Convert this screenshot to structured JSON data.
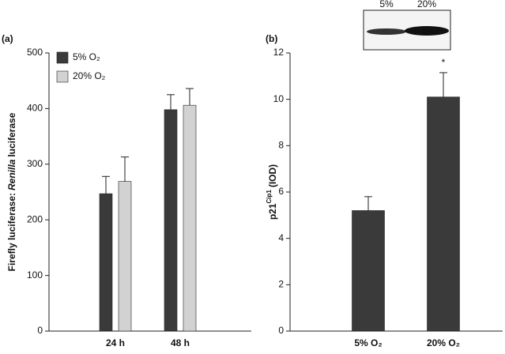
{
  "chart_data": [
    {
      "type": "bar",
      "panel": "(a)",
      "ylabel": [
        "Firefly luciferase:",
        "Renilla",
        "luciferase"
      ],
      "ylabel_styles": [
        "normal",
        "italic",
        "normal"
      ],
      "categories": [
        "24 h",
        "48 h"
      ],
      "series": [
        {
          "name": "5% O₂",
          "color": "#3a3a3a",
          "values": [
            247,
            398
          ],
          "errors": [
            31,
            27
          ]
        },
        {
          "name": "20% O₂",
          "color": "#d2d2d2",
          "values": [
            269,
            406
          ],
          "errors": [
            44,
            30
          ]
        }
      ],
      "ylim": [
        0,
        500
      ],
      "yticks": [
        0,
        100,
        200,
        300,
        400,
        500
      ],
      "legend": "upper-left"
    },
    {
      "type": "bar",
      "panel": "(b)",
      "ylabel": [
        "p21",
        "Cip1",
        "(IOD)"
      ],
      "ylabel_styles": [
        "normal",
        "super",
        "normal"
      ],
      "categories": [
        "5% O₂",
        "20% O₂"
      ],
      "values": [
        5.2,
        10.1
      ],
      "errors": [
        0.6,
        1.05
      ],
      "color": "#3a3a3a",
      "annotation": "*",
      "blot_labels": [
        "5%",
        "20%"
      ],
      "ylim": [
        0,
        12
      ],
      "yticks": [
        0,
        2,
        4,
        6,
        8,
        10,
        12
      ]
    }
  ]
}
